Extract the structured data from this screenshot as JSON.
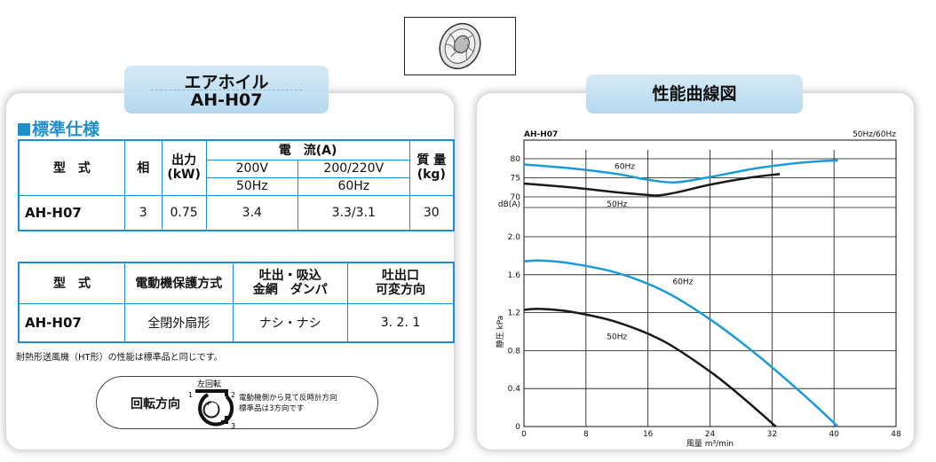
{
  "left": {
    "title_line1": "エアホイル",
    "title_line2": "AH-H07",
    "section_title": "標準仕様",
    "table1": {
      "model_header": "型　式",
      "phase_header": "相",
      "output_header": "出力\n(kW)",
      "current_header": "電　流(A)",
      "mass_header": "質 量\n(kg)",
      "v200": "200V",
      "v200_220": "200/220V",
      "hz50": "50Hz",
      "hz60": "60Hz",
      "row": {
        "model": "AH-H07",
        "phase": "3",
        "output": "0.75",
        "current_50": "3.4",
        "current_60": "3.3/3.1",
        "mass": "30"
      }
    },
    "table2": {
      "model_header": "型　式",
      "protection_header": "電動機保護方式",
      "outlet_header": "吐出・吸込\n金網　ダンパ",
      "direction_header": "吐出口\n可変方向",
      "row": {
        "model": "AH-H07",
        "protection": "全閉外扇形",
        "outlet": "ナシ・ナシ",
        "direction": "3. 2. 1"
      }
    },
    "note": "耐熱形送風機（HT形）の性能は標準品と同じです。",
    "rotation": {
      "label": "回転方向",
      "direction_label": "左回転",
      "n1": "1",
      "n2": "2",
      "n3": "3",
      "desc_line1": "電動機側から見て反時計方向",
      "desc_line2": "標準品は3方向です"
    }
  },
  "right": {
    "title": "性能曲線図"
  },
  "colors": {
    "accent": "#1f8fcb",
    "curve60": "#1a9ad6",
    "curve50": "#1a1a1a"
  },
  "chart_data": {
    "type": "line",
    "model_label": "AH-H07",
    "freq_label": "50Hz/60Hz",
    "xlabel": "風量 m³/min",
    "x_ticks": [
      "0",
      "8",
      "16",
      "24",
      "32",
      "40",
      "48"
    ],
    "xlim": [
      0,
      48
    ],
    "noise": {
      "ylabel": "dB(A)",
      "y_ticks": [
        "70",
        "75",
        "80"
      ],
      "ylim": [
        70,
        80
      ],
      "series": [
        {
          "name": "60Hz",
          "x": [
            0,
            6,
            12,
            16,
            19.5,
            24,
            30,
            36,
            40.5
          ],
          "y": [
            78.5,
            77.5,
            76,
            74.5,
            73.8,
            75.2,
            77.5,
            79,
            79.6
          ]
        },
        {
          "name": "50Hz",
          "x": [
            0,
            6,
            12,
            16,
            17.5,
            20,
            24,
            29,
            33
          ],
          "y": [
            73.5,
            72.5,
            71.2,
            70.5,
            70.4,
            71.3,
            73.2,
            75,
            76
          ]
        }
      ]
    },
    "pressure": {
      "ylabel": "静圧 kPa",
      "y_ticks": [
        "0",
        "0.4",
        "0.8",
        "1.2",
        "1.6",
        "2.0"
      ],
      "ylim": [
        0,
        2.0
      ],
      "series": [
        {
          "name": "60Hz",
          "x": [
            0,
            2,
            6,
            12,
            18,
            24,
            30,
            36,
            40.5
          ],
          "y": [
            1.74,
            1.75,
            1.72,
            1.62,
            1.43,
            1.13,
            0.76,
            0.34,
            0.0
          ]
        },
        {
          "name": "50Hz",
          "x": [
            0,
            2,
            6,
            12,
            18,
            24,
            28,
            32.5
          ],
          "y": [
            1.23,
            1.24,
            1.21,
            1.1,
            0.9,
            0.58,
            0.32,
            0.0
          ]
        }
      ]
    }
  }
}
